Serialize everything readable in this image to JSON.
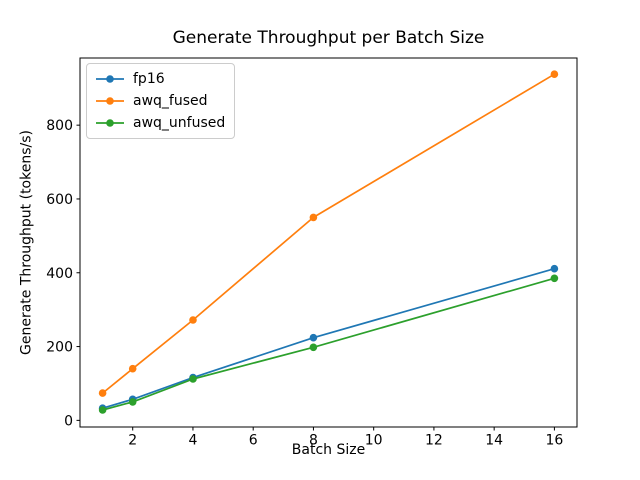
{
  "chart_data": {
    "type": "line",
    "title": "Generate Throughput per Batch Size",
    "xlabel": "Batch Size",
    "ylabel": "Generate Throughput (tokens/s)",
    "x": [
      1,
      2,
      4,
      8,
      16
    ],
    "series": [
      {
        "name": "fp16",
        "color": "#1f77b4",
        "values": [
          33,
          57,
          116,
          224,
          411
        ]
      },
      {
        "name": "awq_fused",
        "color": "#ff7f0e",
        "values": [
          74,
          140,
          272,
          550,
          938
        ]
      },
      {
        "name": "awq_unfused",
        "color": "#2ca02c",
        "values": [
          28,
          50,
          112,
          198,
          385
        ]
      }
    ],
    "xticks": [
      2,
      4,
      6,
      8,
      10,
      12,
      14,
      16
    ],
    "yticks": [
      0,
      200,
      400,
      600,
      800
    ],
    "xlim": [
      0.25,
      16.75
    ],
    "ylim": [
      -18,
      982
    ],
    "grid": false,
    "legend_position": "upper left",
    "marker": "circle",
    "axis_color": "#000000",
    "background_color": "#ffffff"
  }
}
